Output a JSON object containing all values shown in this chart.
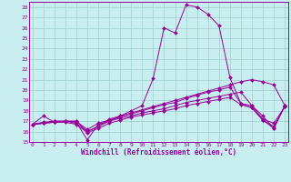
{
  "xlabel": "Windchill (Refroidissement éolien,°C)",
  "bg_color": "#c8eef0",
  "line_color": "#990099",
  "grid_color": "#9ecece",
  "xticks": [
    0,
    1,
    2,
    3,
    4,
    5,
    6,
    7,
    8,
    9,
    10,
    11,
    12,
    13,
    14,
    15,
    16,
    17,
    18,
    19,
    20,
    21,
    22,
    23
  ],
  "yticks": [
    15,
    16,
    17,
    18,
    19,
    20,
    21,
    22,
    23,
    24,
    25,
    26,
    27,
    28
  ],
  "series": [
    [
      16.7,
      17.5,
      16.9,
      17.0,
      16.9,
      15.2,
      16.7,
      17.0,
      17.5,
      18.0,
      18.5,
      21.1,
      26.0,
      25.5,
      28.2,
      28.0,
      27.3,
      26.2,
      21.2,
      18.7,
      18.3,
      17.1,
      16.3,
      18.5
    ],
    [
      16.7,
      16.9,
      17.0,
      17.0,
      17.0,
      16.0,
      16.5,
      17.2,
      17.5,
      17.8,
      18.1,
      18.4,
      18.7,
      19.0,
      19.3,
      19.6,
      19.9,
      20.2,
      20.5,
      20.8,
      21.0,
      20.8,
      20.5,
      18.5
    ],
    [
      16.7,
      16.8,
      17.0,
      17.0,
      17.0,
      16.2,
      16.8,
      17.1,
      17.4,
      17.7,
      18.0,
      18.3,
      18.6,
      18.8,
      19.2,
      19.5,
      19.8,
      20.0,
      20.3,
      18.7,
      18.5,
      17.5,
      16.3,
      18.5
    ],
    [
      16.7,
      16.8,
      16.9,
      17.0,
      16.8,
      16.0,
      16.5,
      17.0,
      17.3,
      17.5,
      17.8,
      18.0,
      18.2,
      18.5,
      18.8,
      19.0,
      19.2,
      19.4,
      19.6,
      19.8,
      18.5,
      17.2,
      16.8,
      18.4
    ],
    [
      16.7,
      16.8,
      16.9,
      16.9,
      16.7,
      15.9,
      16.3,
      16.8,
      17.1,
      17.4,
      17.6,
      17.8,
      18.0,
      18.2,
      18.5,
      18.7,
      18.9,
      19.1,
      19.3,
      18.6,
      18.3,
      17.1,
      16.5,
      18.4
    ]
  ]
}
